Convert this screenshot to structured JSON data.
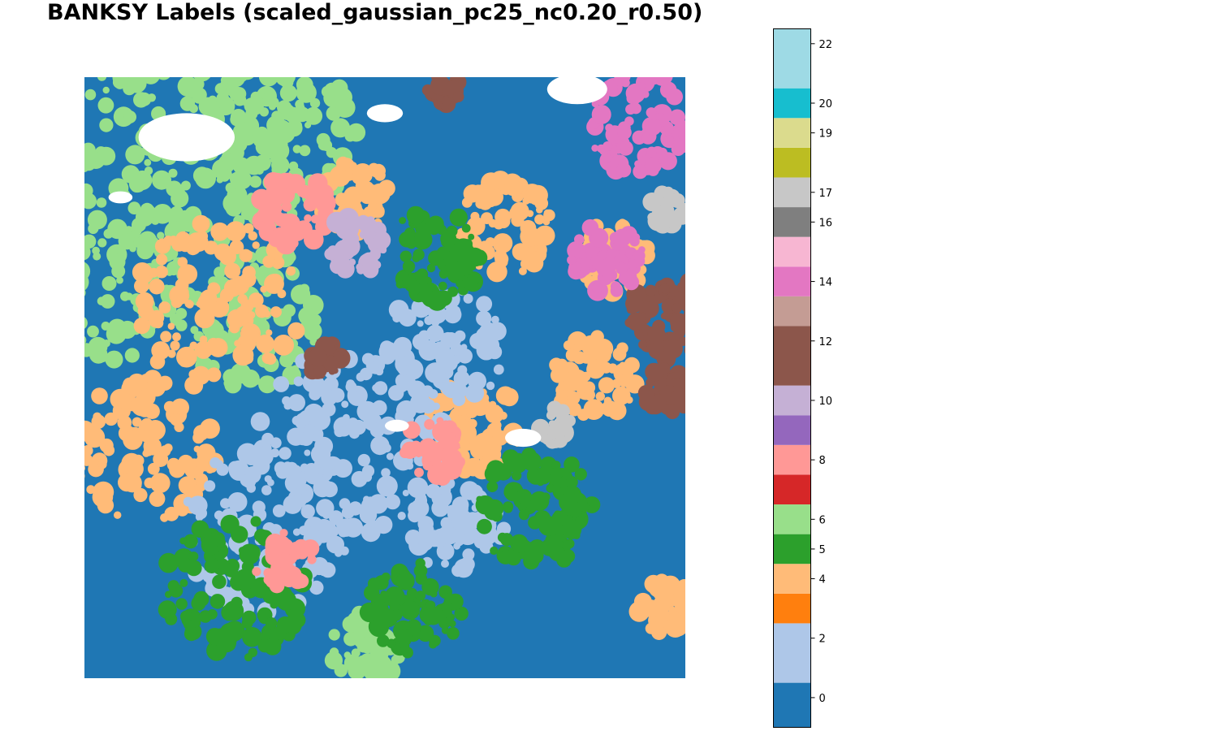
{
  "chart_data": {
    "type": "scatter",
    "title": "BANKSY Labels (scaled_gaussian_pc25_nc0.20_r0.50)",
    "xlabel": "",
    "ylabel": "",
    "axes_visible": false,
    "colormap": "tab20",
    "colorbar": {
      "placement": "right",
      "vmin": 0,
      "vmax": 22,
      "tick_labels": [
        "0",
        "2",
        "4",
        "5",
        "6",
        "8",
        "10",
        "12",
        "14",
        "16",
        "17",
        "19",
        "20",
        "22"
      ],
      "categories": [
        {
          "label": 0,
          "color": "#1f77b4"
        },
        {
          "label": 2,
          "color": "#aec7e8"
        },
        {
          "label": 3,
          "color": "#ff7f0e"
        },
        {
          "label": 4,
          "color": "#ffbb78"
        },
        {
          "label": 5,
          "color": "#2ca02c"
        },
        {
          "label": 6,
          "color": "#98df8a"
        },
        {
          "label": 7,
          "color": "#d62728"
        },
        {
          "label": 8,
          "color": "#ff9896"
        },
        {
          "label": 9,
          "color": "#9467bd"
        },
        {
          "label": 10,
          "color": "#c5b0d5"
        },
        {
          "label": 12,
          "color": "#8c564b"
        },
        {
          "label": 13,
          "color": "#c49c94"
        },
        {
          "label": 14,
          "color": "#e377c2"
        },
        {
          "label": 15,
          "color": "#f7b6d2"
        },
        {
          "label": 16,
          "color": "#7f7f7f"
        },
        {
          "label": 17,
          "color": "#c7c7c7"
        },
        {
          "label": 18,
          "color": "#bcbd22"
        },
        {
          "label": 19,
          "color": "#dbdb8d"
        },
        {
          "label": 20,
          "color": "#17becf"
        },
        {
          "label": 22,
          "color": "#9edae5"
        }
      ]
    },
    "regions": [
      {
        "label": 0,
        "x": 0.5,
        "y": 0.5,
        "r": 0.8
      },
      {
        "label": 6,
        "x": 0.15,
        "y": 0.12,
        "r": 0.18
      },
      {
        "label": 6,
        "x": 0.32,
        "y": 0.1,
        "r": 0.14
      },
      {
        "label": 6,
        "x": 0.05,
        "y": 0.35,
        "r": 0.12
      },
      {
        "label": 6,
        "x": 0.28,
        "y": 0.4,
        "r": 0.12
      },
      {
        "label": 6,
        "x": 0.47,
        "y": 0.95,
        "r": 0.06
      },
      {
        "label": 4,
        "x": 0.22,
        "y": 0.38,
        "r": 0.14
      },
      {
        "label": 4,
        "x": 0.1,
        "y": 0.62,
        "r": 0.12
      },
      {
        "label": 4,
        "x": 0.45,
        "y": 0.2,
        "r": 0.06
      },
      {
        "label": 4,
        "x": 0.7,
        "y": 0.25,
        "r": 0.08
      },
      {
        "label": 4,
        "x": 0.88,
        "y": 0.3,
        "r": 0.06
      },
      {
        "label": 4,
        "x": 0.85,
        "y": 0.5,
        "r": 0.07
      },
      {
        "label": 4,
        "x": 0.65,
        "y": 0.58,
        "r": 0.08
      },
      {
        "label": 4,
        "x": 0.97,
        "y": 0.88,
        "r": 0.05
      },
      {
        "label": 2,
        "x": 0.45,
        "y": 0.6,
        "r": 0.16
      },
      {
        "label": 2,
        "x": 0.6,
        "y": 0.45,
        "r": 0.1
      },
      {
        "label": 2,
        "x": 0.3,
        "y": 0.75,
        "r": 0.14
      },
      {
        "label": 2,
        "x": 0.62,
        "y": 0.75,
        "r": 0.08
      },
      {
        "label": 5,
        "x": 0.25,
        "y": 0.85,
        "r": 0.12
      },
      {
        "label": 5,
        "x": 0.75,
        "y": 0.72,
        "r": 0.1
      },
      {
        "label": 5,
        "x": 0.58,
        "y": 0.3,
        "r": 0.08
      },
      {
        "label": 5,
        "x": 0.55,
        "y": 0.88,
        "r": 0.08
      },
      {
        "label": 8,
        "x": 0.35,
        "y": 0.22,
        "r": 0.06
      },
      {
        "label": 8,
        "x": 0.58,
        "y": 0.62,
        "r": 0.05
      },
      {
        "label": 8,
        "x": 0.33,
        "y": 0.8,
        "r": 0.05
      },
      {
        "label": 10,
        "x": 0.45,
        "y": 0.28,
        "r": 0.05
      },
      {
        "label": 12,
        "x": 0.97,
        "y": 0.4,
        "r": 0.07
      },
      {
        "label": 12,
        "x": 0.4,
        "y": 0.47,
        "r": 0.03
      },
      {
        "label": 12,
        "x": 0.6,
        "y": 0.02,
        "r": 0.03
      },
      {
        "label": 12,
        "x": 0.97,
        "y": 0.52,
        "r": 0.04
      },
      {
        "label": 14,
        "x": 0.93,
        "y": 0.08,
        "r": 0.09
      },
      {
        "label": 14,
        "x": 0.87,
        "y": 0.3,
        "r": 0.06
      },
      {
        "label": 17,
        "x": 0.78,
        "y": 0.58,
        "r": 0.03
      },
      {
        "label": 17,
        "x": 0.97,
        "y": 0.22,
        "r": 0.03
      }
    ]
  }
}
